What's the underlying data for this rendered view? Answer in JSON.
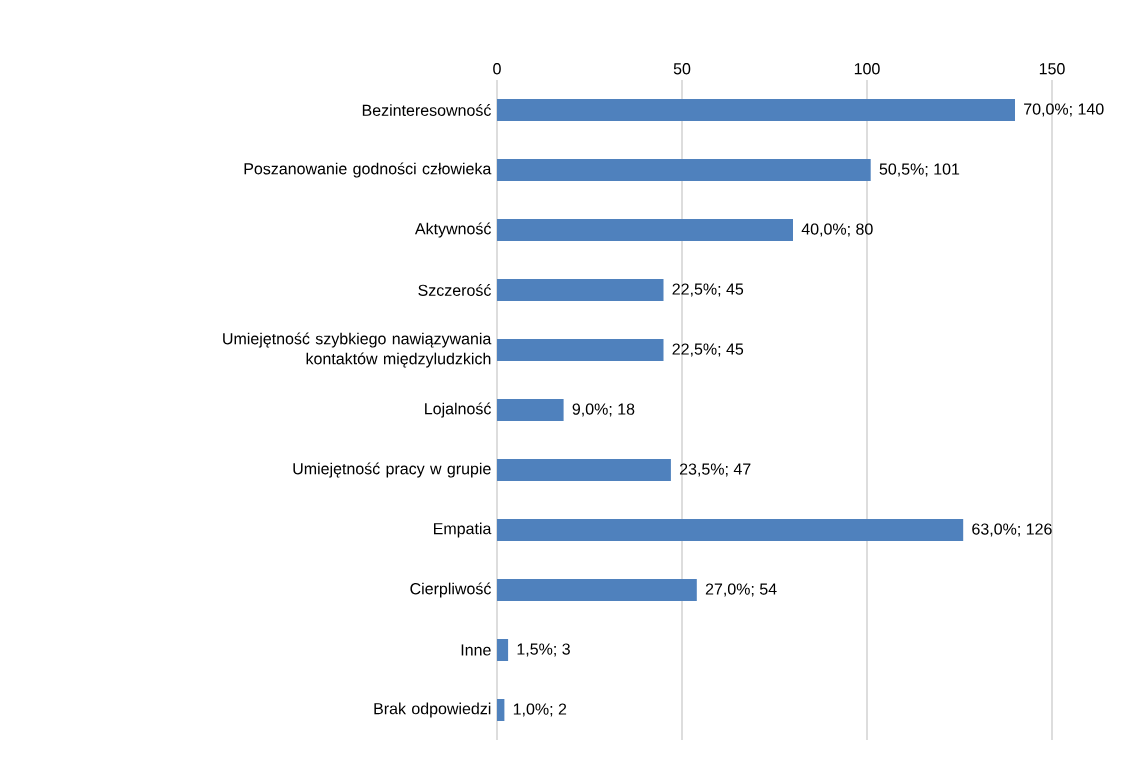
{
  "chart_data": {
    "type": "bar",
    "orientation": "horizontal",
    "categories": [
      "Bezinteresowność",
      "Poszanowanie godności człowieka",
      "Aktywność",
      "Szczerość",
      "Umiejętność szybkiego nawiązywania kontaktów międzyludzkich",
      "Lojalność",
      "Umiejętność pracy w grupie",
      "Empatia",
      "Cierpliwość",
      "Inne",
      "Brak odpowiedzi"
    ],
    "values": [
      140,
      101,
      80,
      45,
      45,
      18,
      47,
      126,
      54,
      3,
      2
    ],
    "value_labels": [
      "70,0%; 140",
      "50,5%; 101",
      "40,0%; 80",
      "22,5%; 45",
      "22,5%; 45",
      "9,0%; 18",
      "23,5%; 47",
      "63,0%; 126",
      "27,0%; 54",
      "1,5%; 3",
      "1,0%; 2"
    ],
    "color": "#4f81bd",
    "xlim": [
      0,
      150
    ],
    "xticks": [
      0,
      50,
      100,
      150
    ],
    "grid": "x"
  }
}
